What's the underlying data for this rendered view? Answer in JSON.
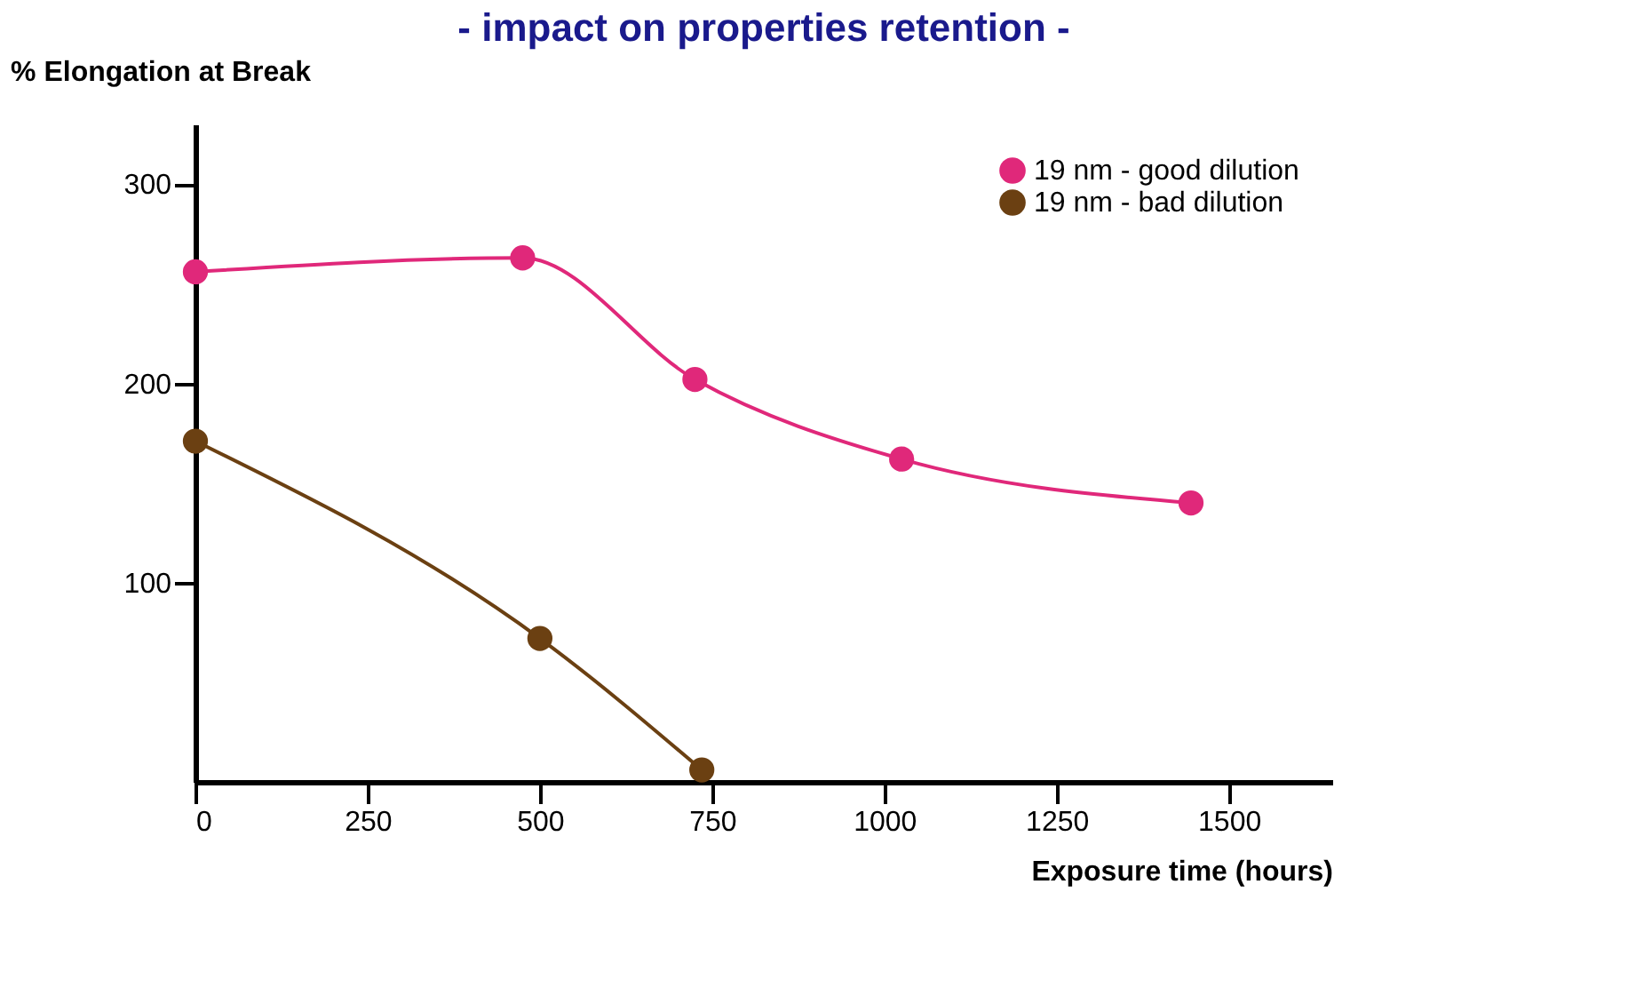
{
  "chart_data": {
    "type": "line",
    "title": "- impact on properties retention -",
    "xlabel": "Exposure time (hours)",
    "ylabel": "% Elongation at Break",
    "series": [
      {
        "name": "19 nm - good dilution",
        "color": "#e0287a",
        "x": [
          0,
          475,
          725,
          1025,
          1445
        ],
        "values": [
          256,
          263,
          202,
          162,
          140
        ]
      },
      {
        "name": "19 nm - bad dilution",
        "color": "#6b4012",
        "x": [
          0,
          500,
          735
        ],
        "values": [
          171,
          72,
          6
        ]
      }
    ],
    "xlim": [
      0,
      1650
    ],
    "ylim": [
      0,
      330
    ],
    "xticks": [
      0,
      250,
      500,
      750,
      1000,
      1250,
      1500
    ],
    "yticks": [
      100,
      200,
      300
    ],
    "marker": "circle",
    "line_style": "solid",
    "grid": false,
    "legend": "top right"
  }
}
